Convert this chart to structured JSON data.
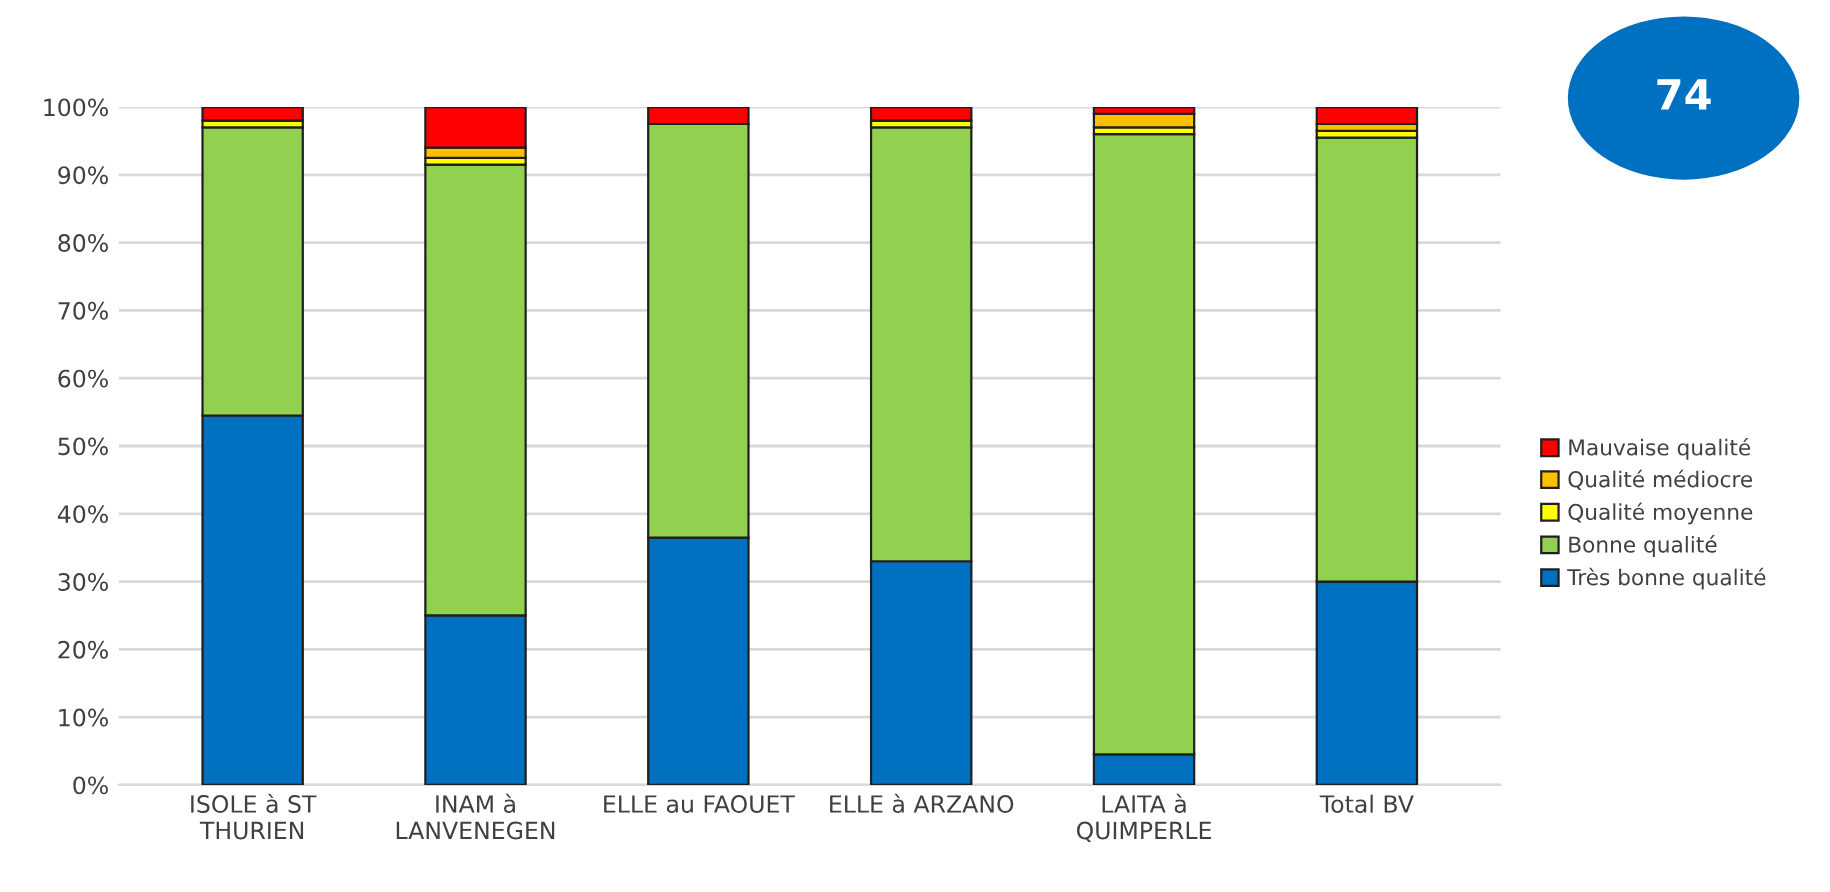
{
  "chart_data": {
    "type": "bar",
    "stacked": true,
    "categories": [
      "ISOLE à ST\nTHURIEN",
      "INAM à\nLANVENEGEN",
      "ELLE au FAOUET",
      "ELLE à ARZANO",
      "LAITA à\nQUIMPERLE",
      "Total BV"
    ],
    "series": [
      {
        "name": "Très bonne qualité",
        "color": "#0070c0",
        "values": [
          54.5,
          25,
          36.5,
          33,
          4.5,
          30
        ]
      },
      {
        "name": "Bonne qualité",
        "color": "#92d050",
        "values": [
          42.5,
          66.5,
          61,
          64,
          91.5,
          65.5
        ]
      },
      {
        "name": "Qualité moyenne",
        "color": "#ffff00",
        "values": [
          1,
          1,
          0,
          1,
          1,
          1
        ]
      },
      {
        "name": "Qualité médiocre",
        "color": "#ffc000",
        "values": [
          0,
          1.5,
          0,
          0,
          2,
          1
        ]
      },
      {
        "name": "Mauvaise qualité",
        "color": "#ff0000",
        "values": [
          2,
          6,
          2.5,
          2,
          1,
          2.5
        ]
      }
    ],
    "ylim": [
      0,
      100
    ],
    "yticks": [
      {
        "value": 0,
        "label": "0%"
      },
      {
        "value": 10,
        "label": "10%"
      },
      {
        "value": 20,
        "label": "20%"
      },
      {
        "value": 30,
        "label": "30%"
      },
      {
        "value": 40,
        "label": "40%"
      },
      {
        "value": 50,
        "label": "50%"
      },
      {
        "value": 60,
        "label": "60%"
      },
      {
        "value": 70,
        "label": "70%"
      },
      {
        "value": 80,
        "label": "80%"
      },
      {
        "value": 90,
        "label": "90%"
      },
      {
        "value": 100,
        "label": "100%"
      }
    ],
    "grid": "y",
    "legend": "right",
    "annotations": [
      "74"
    ]
  }
}
